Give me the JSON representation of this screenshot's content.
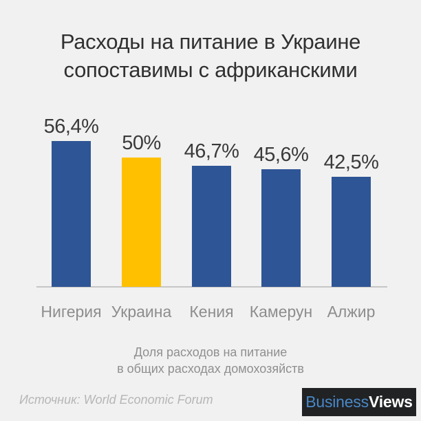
{
  "title": {
    "line1": "Расходы на питание в Украине",
    "line2": "сопоставимы с африканскими"
  },
  "chart_data": {
    "type": "bar",
    "categories": [
      "Нигерия",
      "Украина",
      "Кения",
      "Камерун",
      "Алжир"
    ],
    "values": [
      56.4,
      50,
      46.7,
      45.6,
      42.5
    ],
    "value_labels": [
      "56,4%",
      "50%",
      "46,7%",
      "45,6%",
      "42,5%"
    ],
    "bar_colors": [
      "#2e5595",
      "#ffc000",
      "#2e5595",
      "#2e5595",
      "#2e5595"
    ],
    "highlight_category": "Украина",
    "title": "Расходы на питание в Украине сопоставимы с африканскими",
    "xlabel": "",
    "ylabel": "Доля расходов на питание в общих расходах домохозяйств",
    "ylim": [
      0,
      60
    ],
    "grid": false,
    "legend": false,
    "unit": "%"
  },
  "caption": {
    "line1": "Доля расходов на питание",
    "line2": "в общих расходах домохозяйств"
  },
  "footer": {
    "source": "Источник: World Economic Forum",
    "logo_business": "Business",
    "logo_views": "Views"
  },
  "colors": {
    "background": "#f1f1f1",
    "bar_blue": "#2e5595",
    "bar_highlight": "#ffc000",
    "title_text": "#303030",
    "value_text": "#3a3a3a",
    "category_text": "#8d8d8d",
    "caption_text": "#8f8f8f",
    "source_text": "#b6b6b6",
    "axis_line": "#c6c6c6",
    "logo_background": "#202224",
    "logo_blue": "#4a88c8",
    "logo_white": "#ffffff"
  }
}
